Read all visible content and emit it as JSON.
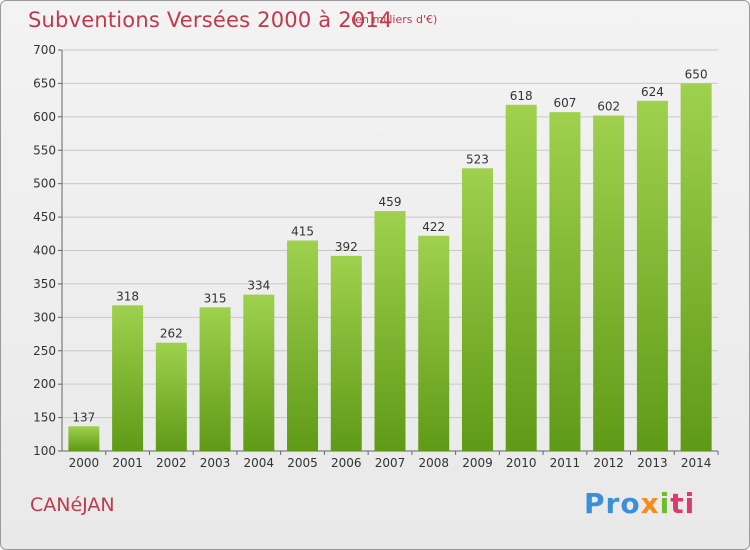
{
  "header": {
    "title": "Subventions Versées 2000 à 2014",
    "subtitle": "(en milliers d'€)"
  },
  "footer": {
    "place": "CANéJAN",
    "logo": {
      "p1": "Pro",
      "p2": "x",
      "p3": "i",
      "p4": "ti"
    }
  },
  "colors": {
    "bar_top": "#9fd14e",
    "bar_bottom": "#5f9a16",
    "title": "#bf3a4b",
    "grid": "#c8c8c8"
  },
  "chart_data": {
    "type": "bar",
    "categories": [
      "2000",
      "2001",
      "2002",
      "2003",
      "2004",
      "2005",
      "2006",
      "2007",
      "2008",
      "2009",
      "2010",
      "2011",
      "2012",
      "2013",
      "2014"
    ],
    "values": [
      137,
      318,
      262,
      315,
      334,
      415,
      392,
      459,
      422,
      523,
      618,
      607,
      602,
      624,
      650
    ],
    "title": "Subventions Versées 2000 à 2014",
    "subtitle": "(en milliers d'€)",
    "ylim": [
      100,
      700
    ],
    "yticks": [
      100,
      150,
      200,
      250,
      300,
      350,
      400,
      450,
      500,
      550,
      600,
      650,
      700
    ],
    "grid": true,
    "legend": "none"
  }
}
